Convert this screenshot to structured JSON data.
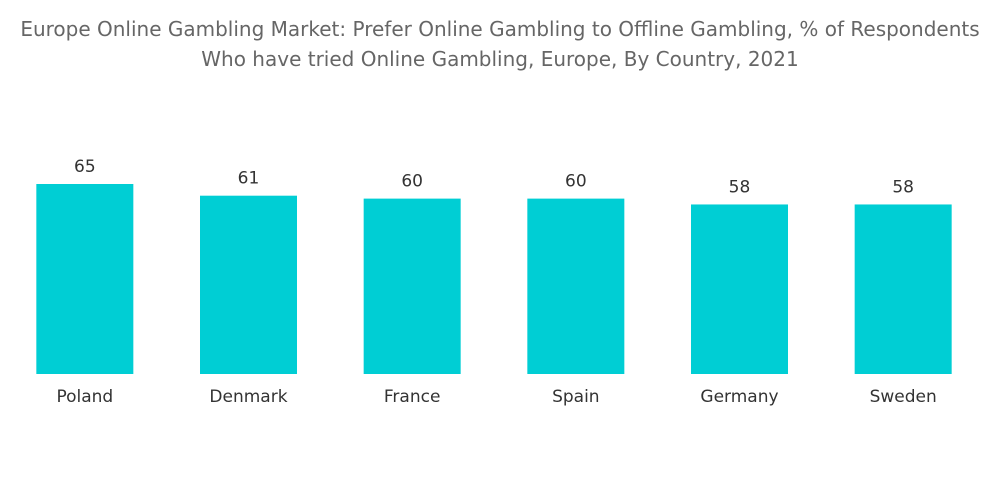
{
  "chart_data": {
    "type": "bar",
    "title": "Europe Online Gambling Market: Prefer Online Gambling to Offline Gambling, % of Respondents Who have tried Online Gambling, Europe, By Country, 2021",
    "categories": [
      "Poland",
      "Denmark",
      "France",
      "Spain",
      "Germany",
      "Sweden"
    ],
    "values": [
      65,
      61,
      60,
      60,
      58,
      58
    ],
    "color": "#00ced4"
  }
}
